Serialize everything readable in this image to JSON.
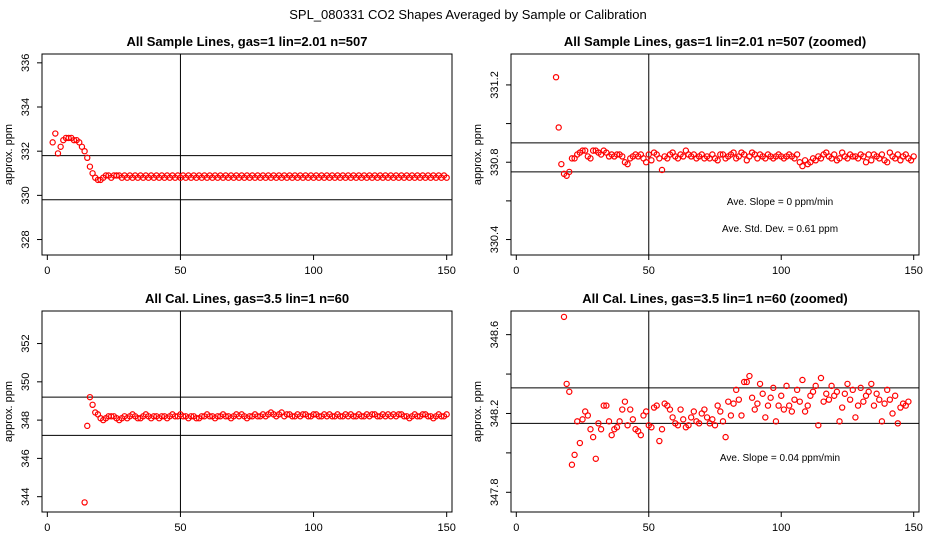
{
  "figure": {
    "title": "SPL_080331  CO2 Shapes Averaged by Sample or Calibration"
  },
  "chart_data": [
    {
      "type": "scatter",
      "title": "All Sample Lines, gas=1 lin=2.01 n=507",
      "ylabel": "approx. ppm",
      "xlim": [
        -2,
        152
      ],
      "ylim": [
        327.3,
        336.4
      ],
      "xticks": [
        0,
        50,
        100,
        150
      ],
      "yticks": [
        328,
        330,
        332,
        334,
        336
      ],
      "vlines": [
        50
      ],
      "hlines": [
        329.8,
        331.8
      ],
      "color": "#ff0000",
      "annotations": [],
      "x_start": 2,
      "values": [
        332.4,
        332.8,
        331.9,
        332.2,
        332.5,
        332.6,
        332.6,
        332.6,
        332.5,
        332.5,
        332.4,
        332.2,
        332.0,
        331.7,
        331.3,
        331.0,
        330.8,
        330.7,
        330.7,
        330.8,
        330.9,
        330.9,
        330.8,
        330.9,
        330.9,
        330.9,
        330.8,
        330.9,
        330.8,
        330.9,
        330.8,
        330.9,
        330.8,
        330.9,
        330.8,
        330.9,
        330.8,
        330.9,
        330.8,
        330.9,
        330.8,
        330.9,
        330.8,
        330.9,
        330.8,
        330.9,
        330.8,
        330.9,
        330.8,
        330.9,
        330.8,
        330.9,
        330.8,
        330.9,
        330.8,
        330.9,
        330.8,
        330.9,
        330.8,
        330.9,
        330.8,
        330.9,
        330.8,
        330.9,
        330.8,
        330.9,
        330.8,
        330.9,
        330.8,
        330.9,
        330.8,
        330.9,
        330.8,
        330.9,
        330.8,
        330.9,
        330.8,
        330.9,
        330.8,
        330.9,
        330.8,
        330.9,
        330.8,
        330.9,
        330.8,
        330.9,
        330.8,
        330.9,
        330.8,
        330.9,
        330.8,
        330.9,
        330.8,
        330.9,
        330.8,
        330.9,
        330.8,
        330.9,
        330.8,
        330.9,
        330.8,
        330.9,
        330.8,
        330.9,
        330.8,
        330.9,
        330.8,
        330.9,
        330.8,
        330.9,
        330.8,
        330.9,
        330.8,
        330.9,
        330.8,
        330.9,
        330.8,
        330.9,
        330.8,
        330.9,
        330.8,
        330.9,
        330.8,
        330.9,
        330.8,
        330.9,
        330.8,
        330.9,
        330.8,
        330.9,
        330.8,
        330.9,
        330.8,
        330.9,
        330.8,
        330.9,
        330.8,
        330.9,
        330.8,
        330.9,
        330.8,
        330.9,
        330.8,
        330.9,
        330.8,
        330.9,
        330.8,
        330.9,
        330.8
      ]
    },
    {
      "type": "scatter",
      "title": "All Sample Lines, gas=1 lin=2.01 n=507 (zoomed)",
      "ylabel": "approx. ppm",
      "xlim": [
        -2,
        152
      ],
      "ylim": [
        330.32,
        331.36
      ],
      "xticks": [
        0,
        50,
        100,
        150
      ],
      "yticks": [
        330.4,
        330.6,
        330.8,
        331.0,
        331.2
      ],
      "ytick_labels": [
        "330.4",
        "",
        "330.8",
        "",
        "331.2"
      ],
      "vlines": [
        50
      ],
      "hlines": [
        330.75,
        330.9
      ],
      "color": "#ff0000",
      "annotations": [
        "Ave. Slope =  0  ppm/min",
        "Ave. Std. Dev. =  0.61  ppm"
      ],
      "x_start": 15,
      "values": [
        331.24,
        330.98,
        330.79,
        330.74,
        330.73,
        330.75,
        330.82,
        330.82,
        330.84,
        330.85,
        330.86,
        330.86,
        330.83,
        330.82,
        330.86,
        330.86,
        330.85,
        330.84,
        330.86,
        330.85,
        330.83,
        330.84,
        330.83,
        330.84,
        330.84,
        330.83,
        330.8,
        330.79,
        330.82,
        330.83,
        330.84,
        330.83,
        330.84,
        330.82,
        330.8,
        330.84,
        330.81,
        330.85,
        330.84,
        330.82,
        330.76,
        330.83,
        330.82,
        330.84,
        330.85,
        330.83,
        330.82,
        330.84,
        330.83,
        330.86,
        330.84,
        330.83,
        330.84,
        330.82,
        330.83,
        330.84,
        330.82,
        330.83,
        330.82,
        330.84,
        330.82,
        330.81,
        330.84,
        330.84,
        330.82,
        330.83,
        330.84,
        330.85,
        330.82,
        330.83,
        330.85,
        330.84,
        330.81,
        330.83,
        330.85,
        330.84,
        330.82,
        330.84,
        330.83,
        330.82,
        330.84,
        330.83,
        330.82,
        330.83,
        330.84,
        330.83,
        330.82,
        330.83,
        330.84,
        330.83,
        330.82,
        330.84,
        330.8,
        330.78,
        330.81,
        330.79,
        330.8,
        330.82,
        330.81,
        330.83,
        330.82,
        330.84,
        330.85,
        330.83,
        330.82,
        330.84,
        330.81,
        330.82,
        330.85,
        330.83,
        330.82,
        330.84,
        330.83,
        330.83,
        330.82,
        330.84,
        330.83,
        330.8,
        330.84,
        330.81,
        330.84,
        330.83,
        330.82,
        330.84,
        330.81,
        330.8,
        330.85,
        330.83,
        330.82,
        330.84,
        330.81,
        330.83,
        330.84,
        330.82,
        330.81,
        330.83
      ]
    },
    {
      "type": "scatter",
      "title": "All Cal. Lines, gas=3.5 lin=1 n=60",
      "ylabel": "approx. ppm",
      "xlim": [
        -2,
        152
      ],
      "ylim": [
        343.2,
        353.7
      ],
      "xticks": [
        0,
        50,
        100,
        150
      ],
      "yticks": [
        344,
        346,
        348,
        350,
        352
      ],
      "vlines": [
        50
      ],
      "hlines": [
        347.2,
        349.2
      ],
      "color": "#ff0000",
      "annotations": [],
      "x_start": 14,
      "values": [
        343.7,
        347.7,
        349.2,
        348.8,
        348.4,
        348.3,
        348.1,
        348.0,
        348.1,
        348.2,
        348.2,
        348.2,
        348.1,
        348.0,
        348.1,
        348.2,
        348.1,
        348.2,
        348.3,
        348.2,
        348.1,
        348.1,
        348.2,
        348.3,
        348.2,
        348.1,
        348.2,
        348.2,
        348.1,
        348.2,
        348.2,
        348.1,
        348.2,
        348.3,
        348.2,
        348.2,
        348.3,
        348.2,
        348.2,
        348.1,
        348.2,
        348.2,
        348.1,
        348.1,
        348.2,
        348.2,
        348.3,
        348.2,
        348.2,
        348.1,
        348.2,
        348.2,
        348.3,
        348.2,
        348.2,
        348.1,
        348.2,
        348.3,
        348.2,
        348.3,
        348.2,
        348.1,
        348.2,
        348.2,
        348.3,
        348.2,
        348.2,
        348.3,
        348.2,
        348.3,
        348.4,
        348.3,
        348.2,
        348.3,
        348.4,
        348.2,
        348.3,
        348.3,
        348.2,
        348.2,
        348.3,
        348.2,
        348.3,
        348.3,
        348.2,
        348.2,
        348.3,
        348.3,
        348.2,
        348.2,
        348.3,
        348.2,
        348.3,
        348.2,
        348.2,
        348.3,
        348.2,
        348.2,
        348.3,
        348.2,
        348.3,
        348.2,
        348.2,
        348.3,
        348.2,
        348.2,
        348.3,
        348.2,
        348.3,
        348.3,
        348.2,
        348.2,
        348.3,
        348.2,
        348.3,
        348.2,
        348.3,
        348.2,
        348.3,
        348.3,
        348.2,
        348.2,
        348.1,
        348.2,
        348.3,
        348.2,
        348.2,
        348.3,
        348.3,
        348.2,
        348.2,
        348.1,
        348.2,
        348.3,
        348.2,
        348.2,
        348.3
      ]
    },
    {
      "type": "scatter",
      "title": "All Cal. Lines, gas=3.5 lin=1 n=60 (zoomed)",
      "ylabel": "approx. ppm",
      "xlim": [
        -2,
        152
      ],
      "ylim": [
        347.7,
        348.72
      ],
      "xticks": [
        0,
        50,
        100,
        150
      ],
      "yticks": [
        347.8,
        348.0,
        348.2,
        348.4,
        348.6
      ],
      "ytick_labels": [
        "347.8",
        "",
        "348.2",
        "",
        "348.6"
      ],
      "vlines": [
        50
      ],
      "hlines": [
        348.15,
        348.33
      ],
      "color": "#ff0000",
      "annotations": [
        "Ave. Slope =  0.04  ppm/min"
      ],
      "x_start": 18,
      "values": [
        348.69,
        348.35,
        348.31,
        347.94,
        347.99,
        348.16,
        348.05,
        348.17,
        348.21,
        348.19,
        348.12,
        348.08,
        347.97,
        348.15,
        348.12,
        348.24,
        348.24,
        348.16,
        348.09,
        348.12,
        348.13,
        348.16,
        348.22,
        348.26,
        348.14,
        348.22,
        348.17,
        348.12,
        348.11,
        348.09,
        348.19,
        348.21,
        348.14,
        348.13,
        348.23,
        348.24,
        348.06,
        348.12,
        348.25,
        348.24,
        348.22,
        348.18,
        348.15,
        348.14,
        348.22,
        348.17,
        348.13,
        348.14,
        348.18,
        348.21,
        348.16,
        348.15,
        348.2,
        348.22,
        348.18,
        348.15,
        348.17,
        348.14,
        348.24,
        348.21,
        348.16,
        348.08,
        348.26,
        348.19,
        348.25,
        348.32,
        348.27,
        348.19,
        348.36,
        348.36,
        348.39,
        348.28,
        348.22,
        348.25,
        348.35,
        348.3,
        348.18,
        348.24,
        348.28,
        348.33,
        348.16,
        348.24,
        348.29,
        348.22,
        348.34,
        348.24,
        348.21,
        348.27,
        348.32,
        348.26,
        348.37,
        348.21,
        348.24,
        348.29,
        348.31,
        348.34,
        348.14,
        348.38,
        348.26,
        348.3,
        348.27,
        348.34,
        348.29,
        348.31,
        348.16,
        348.23,
        348.3,
        348.35,
        348.27,
        348.32,
        348.18,
        348.24,
        348.33,
        348.26,
        348.29,
        348.31,
        348.35,
        348.24,
        348.3,
        348.27,
        348.16,
        348.25,
        348.32,
        348.27,
        348.2,
        348.29,
        348.15,
        348.23,
        348.25,
        348.24,
        348.26
      ]
    }
  ]
}
